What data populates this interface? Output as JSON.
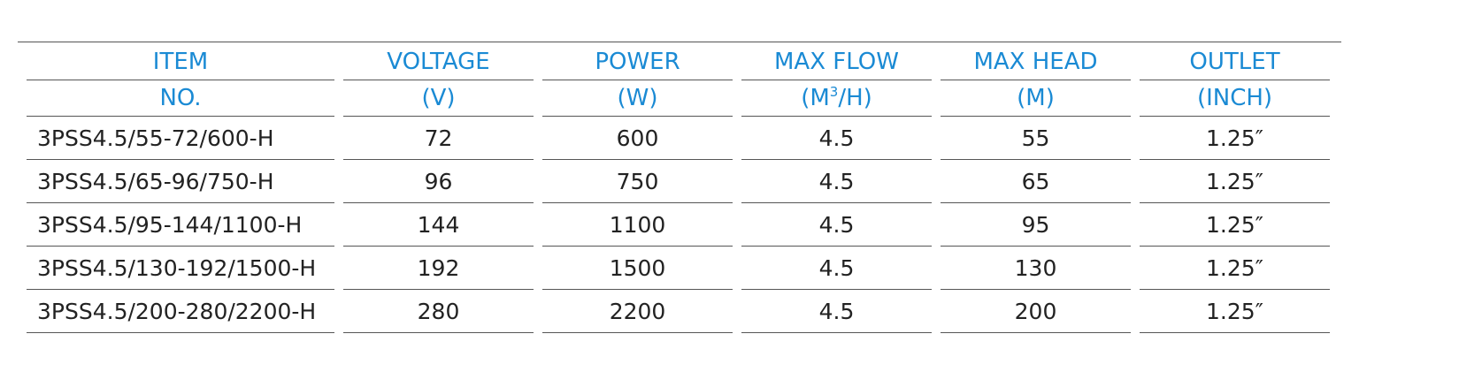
{
  "header_row1": [
    "ITEM",
    "VOLTAGE",
    "POWER",
    "MAX FLOW",
    "MAX HEAD",
    "OUTLET"
  ],
  "header_row2": {
    "item": "NO.",
    "voltage": "(V)",
    "power": "(W)",
    "flow_prefix": "(M",
    "flow_sup": "3",
    "flow_suffix": "/H)",
    "head": "(M)",
    "outlet": "(INCH)"
  },
  "rows": [
    {
      "item": "3PSS4.5/55-72/600-H",
      "voltage": "72",
      "power": "600",
      "max_flow": "4.5",
      "max_head": "55",
      "outlet": "1.25″"
    },
    {
      "item": "3PSS4.5/65-96/750-H",
      "voltage": "96",
      "power": "750",
      "max_flow": "4.5",
      "max_head": "65",
      "outlet": "1.25″"
    },
    {
      "item": "3PSS4.5/95-144/1100-H",
      "voltage": "144",
      "power": "1100",
      "max_flow": "4.5",
      "max_head": "95",
      "outlet": "1.25″"
    },
    {
      "item": "3PSS4.5/130-192/1500-H",
      "voltage": "192",
      "power": "1500",
      "max_flow": "4.5",
      "max_head": "130",
      "outlet": "1.25″"
    },
    {
      "item": "3PSS4.5/200-280/2200-H",
      "voltage": "280",
      "power": "2200",
      "max_flow": "4.5",
      "max_head": "200",
      "outlet": "1.25″"
    }
  ],
  "colors": {
    "header_text": "#1a8ad4",
    "body_text": "#222222",
    "rule": "#555555"
  }
}
